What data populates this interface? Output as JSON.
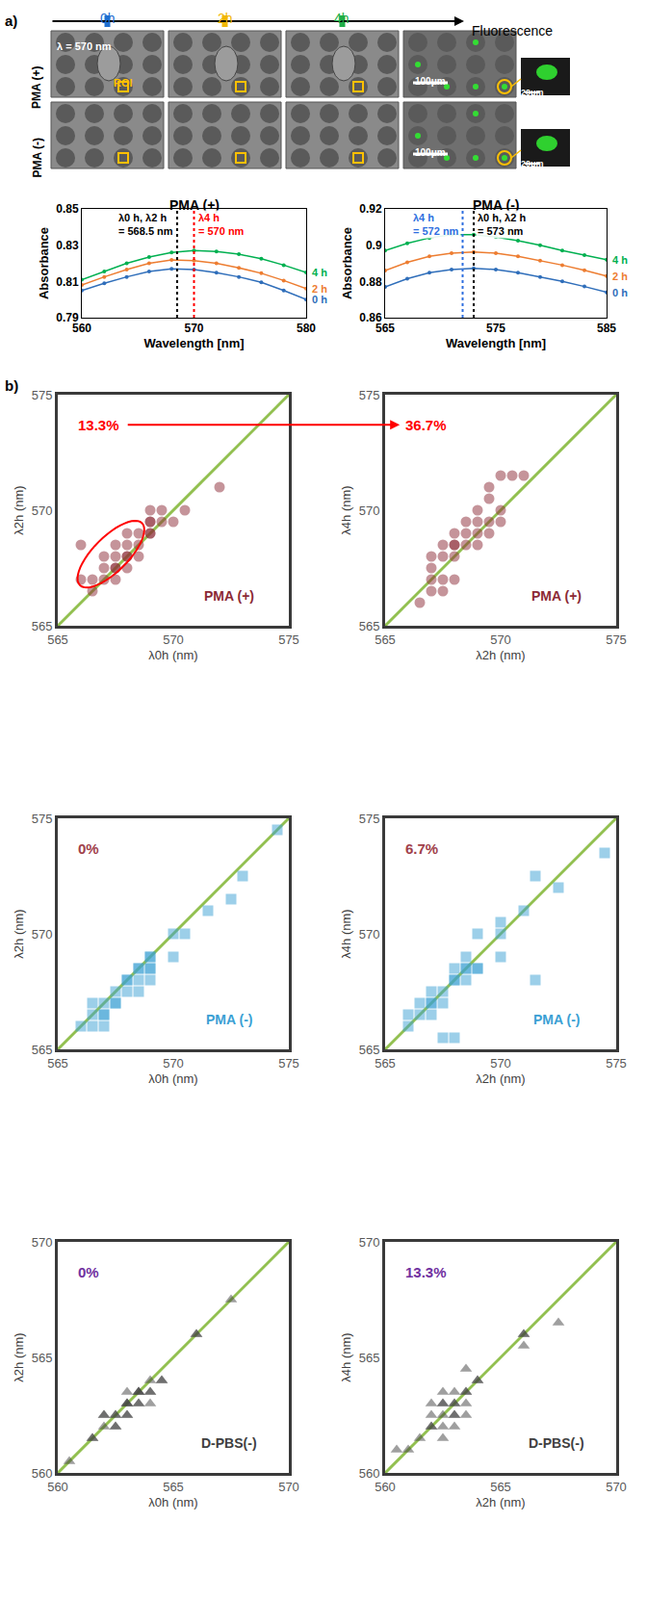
{
  "panel_labels": [
    "a)",
    "b)"
  ],
  "micrographs": {
    "timepoints": [
      {
        "label": "0h",
        "color": "#1f6fd1"
      },
      {
        "label": "2h",
        "color": "#f2b705"
      },
      {
        "label": "4h",
        "color": "#1fae48"
      }
    ],
    "fluorescence": "Fluorescence",
    "rows": [
      "PMA (+)",
      "PMA (-)"
    ],
    "wavelength": "λ = 570 nm",
    "roi": "ROI",
    "scale_bar": "100μm",
    "inset_scale_bar": "20μm"
  },
  "chart_data": [
    {
      "type": "line",
      "title": "PMA (+)",
      "x_label": "Wavelength [nm]",
      "y_label": "Absorbance",
      "marker": "circle",
      "grid": false,
      "x": [
        560,
        562,
        564,
        566,
        568,
        570,
        572,
        574,
        576,
        578,
        580
      ],
      "series": [
        {
          "name": "0 h",
          "color": "#2f6eba",
          "values": [
            0.805,
            0.809,
            0.8125,
            0.8155,
            0.817,
            0.8165,
            0.8148,
            0.8125,
            0.8095,
            0.805,
            0.8
          ]
        },
        {
          "name": "2 h",
          "color": "#ed7d31",
          "values": [
            0.808,
            0.8125,
            0.8165,
            0.82,
            0.8218,
            0.8215,
            0.82,
            0.8175,
            0.8145,
            0.8105,
            0.806
          ]
        },
        {
          "name": "4 h",
          "color": "#00b050",
          "values": [
            0.811,
            0.8155,
            0.82,
            0.8235,
            0.826,
            0.827,
            0.8265,
            0.825,
            0.8225,
            0.819,
            0.815
          ]
        }
      ],
      "xlim": [
        560,
        580
      ],
      "xticks": [
        560,
        570,
        580
      ],
      "ylim": [
        0.79,
        0.85
      ],
      "yticks": [
        0.79,
        0.81,
        0.83,
        0.85
      ],
      "annotations": [
        {
          "text": "λ0 h, λ2 h = 568.5 nm",
          "x": 568.5,
          "color": "#000000"
        },
        {
          "text": "λ4 h = 570 nm",
          "x": 570,
          "color": "#ff0000"
        }
      ]
    },
    {
      "type": "line",
      "title": "PMA (-)",
      "x_label": "Wavelength [nm]",
      "y_label": "Absorbance",
      "marker": "circle",
      "grid": false,
      "x": [
        565,
        567,
        569,
        571,
        573,
        575,
        577,
        579,
        581,
        583,
        585
      ],
      "series": [
        {
          "name": "0 h",
          "color": "#2f6eba",
          "values": [
            0.877,
            0.8815,
            0.8848,
            0.8866,
            0.8872,
            0.8866,
            0.8848,
            0.8825,
            0.88,
            0.8772,
            0.874
          ]
        },
        {
          "name": "2 h",
          "color": "#ed7d31",
          "values": [
            0.886,
            0.8905,
            0.8938,
            0.8956,
            0.8962,
            0.8956,
            0.8938,
            0.8915,
            0.889,
            0.8862,
            0.883
          ]
        },
        {
          "name": "4 h",
          "color": "#00b050",
          "values": [
            0.897,
            0.901,
            0.904,
            0.9058,
            0.9058,
            0.9045,
            0.9025,
            0.9,
            0.897,
            0.8945,
            0.892
          ]
        }
      ],
      "xlim": [
        565,
        585
      ],
      "xticks": [
        565,
        575,
        585
      ],
      "ylim": [
        0.86,
        0.92
      ],
      "yticks": [
        0.86,
        0.88,
        0.9,
        0.92
      ],
      "annotations": [
        {
          "text": "λ4 h = 572 nm",
          "x": 572,
          "color": "#2e6fe0"
        },
        {
          "text": "λ0 h, λ2 h = 573 nm",
          "x": 573,
          "color": "#000000"
        }
      ]
    },
    {
      "type": "scatter",
      "title": "PMA (+)",
      "x_label": "λ0h (nm)",
      "y_label": "λ2h (nm)",
      "color": "#8b2a35",
      "marker": "circle",
      "grid": false,
      "x": [
        566,
        566,
        566.5,
        567,
        567,
        567.5,
        567.5,
        567.5,
        568,
        568,
        568,
        568.5,
        568.5,
        569,
        569,
        569,
        569.5,
        570,
        570.5,
        572,
        567,
        567.5,
        568,
        568.5,
        569,
        569.5,
        568,
        567.5,
        569,
        566.5
      ],
      "values": [
        568.5,
        567,
        566.5,
        567.5,
        568,
        567,
        567.5,
        568.5,
        568,
        569,
        567.5,
        568,
        569,
        569.5,
        570,
        569.5,
        570,
        569.5,
        570,
        571,
        567,
        568,
        568,
        568.5,
        569,
        569.5,
        568.5,
        567.5,
        569,
        567
      ],
      "xlim": [
        565,
        575
      ],
      "xticks": [
        565,
        570,
        575
      ],
      "ylim": [
        565,
        575
      ],
      "yticks": [
        565,
        570,
        575
      ],
      "annotations": [
        {
          "text": "13.3%",
          "color": "#ff0000"
        }
      ]
    },
    {
      "type": "scatter",
      "title": "PMA (+)",
      "x_label": "λ2h (nm)",
      "y_label": "λ4h (nm)",
      "color": "#8b2a35",
      "marker": "circle",
      "grid": false,
      "x": [
        566.5,
        567,
        567,
        567,
        567.5,
        567.5,
        567.5,
        568,
        568,
        568,
        568.5,
        568.5,
        569,
        569,
        569,
        569.5,
        569.5,
        569.5,
        570,
        570,
        570.5,
        571,
        568,
        567,
        569,
        568.5,
        570,
        569.5,
        568,
        567.5
      ],
      "values": [
        566,
        567,
        566.5,
        567.5,
        568,
        568.5,
        566.5,
        568.5,
        569,
        568.5,
        569.5,
        569,
        569.5,
        570,
        569,
        569.5,
        570.5,
        571,
        571.5,
        570,
        571.5,
        571.5,
        567,
        568,
        568.5,
        568.5,
        569.5,
        569,
        568,
        567
      ],
      "xlim": [
        565,
        575
      ],
      "xticks": [
        565,
        570,
        575
      ],
      "ylim": [
        565,
        575
      ],
      "yticks": [
        565,
        570,
        575
      ],
      "annotations": [
        {
          "text": "36.7%",
          "color": "#ff0000"
        }
      ]
    },
    {
      "type": "scatter",
      "title": "PMA (-)",
      "x_label": "λ0h (nm)",
      "y_label": "λ2h (nm)",
      "color": "#3a9fd4",
      "marker": "square",
      "grid": false,
      "x": [
        566.5,
        566.5,
        567,
        567,
        567,
        567.5,
        567.5,
        566.5,
        568,
        568.5,
        568.5,
        569,
        569,
        568.5,
        568,
        569,
        570,
        570.5,
        570,
        571.5,
        572.5,
        573,
        574.5,
        568.5,
        569,
        566,
        567,
        568,
        569,
        567.5
      ],
      "values": [
        566,
        566.5,
        566,
        566.5,
        567,
        567,
        567.5,
        567,
        568,
        568.5,
        568,
        568.5,
        568,
        567.5,
        567.5,
        569,
        569,
        570,
        570,
        571,
        571.5,
        572.5,
        574.5,
        568.5,
        569,
        566,
        566.5,
        568,
        568.5,
        567
      ],
      "xlim": [
        565,
        575
      ],
      "xticks": [
        565,
        570,
        575
      ],
      "ylim": [
        565,
        575
      ],
      "yticks": [
        565,
        570,
        575
      ],
      "annotations": [
        {
          "text": "0%",
          "color": "#a0404a"
        }
      ]
    },
    {
      "type": "scatter",
      "title": "PMA (-)",
      "x_label": "λ2h (nm)",
      "y_label": "λ4h (nm)",
      "color": "#3a9fd4",
      "marker": "square",
      "grid": false,
      "x": [
        566,
        566.5,
        567,
        567,
        567.5,
        567.5,
        568,
        568,
        568,
        568.5,
        568.5,
        569,
        569,
        570,
        570,
        571,
        571.5,
        572.5,
        571.5,
        574.5,
        567,
        568.5,
        566,
        570,
        566.5,
        567.5,
        568,
        569,
        568.5,
        567
      ],
      "values": [
        566,
        567,
        567,
        566.5,
        567.5,
        565.5,
        565.5,
        568,
        568.5,
        568.5,
        569,
        570,
        568.5,
        570,
        569,
        571,
        572.5,
        572,
        568,
        573.5,
        567.5,
        568,
        566.5,
        570.5,
        566.5,
        567,
        568,
        568.5,
        568.5,
        567
      ],
      "xlim": [
        565,
        575
      ],
      "xticks": [
        565,
        570,
        575
      ],
      "ylim": [
        565,
        575
      ],
      "yticks": [
        565,
        570,
        575
      ],
      "annotations": [
        {
          "text": "6.7%",
          "color": "#a0404a"
        }
      ]
    },
    {
      "type": "scatter",
      "title": "D-PBS(-)",
      "x_label": "λ0h (nm)",
      "y_label": "λ2h (nm)",
      "color": "#404040",
      "marker": "triangle-up",
      "grid": false,
      "x": [
        560.5,
        561.5,
        562,
        562.5,
        562.5,
        563,
        563,
        563.5,
        563.5,
        563,
        564,
        564,
        564,
        564.5,
        566,
        567.5,
        562,
        563.5,
        562,
        562.5,
        563,
        563.5,
        564,
        561.5,
        562.5,
        563,
        563.5,
        564.5,
        566,
        563
      ],
      "values": [
        560.5,
        561.5,
        562.5,
        562,
        562.5,
        562.5,
        563,
        563.5,
        563,
        563.5,
        563,
        563.5,
        564,
        564,
        566,
        567.5,
        562,
        563.5,
        562.5,
        562.5,
        563,
        563,
        563.5,
        561.5,
        562,
        563,
        563.5,
        564,
        566,
        562.5
      ],
      "xlim": [
        560,
        570
      ],
      "xticks": [
        560,
        565,
        570
      ],
      "ylim": [
        560,
        570
      ],
      "yticks": [
        560,
        565,
        570
      ],
      "annotations": [
        {
          "text": "0%",
          "color": "#7030a0"
        }
      ]
    },
    {
      "type": "scatter",
      "title": "D-PBS(-)",
      "x_label": "λ2h (nm)",
      "y_label": "λ4h (nm)",
      "color": "#404040",
      "marker": "triangle-up",
      "grid": false,
      "x": [
        560.5,
        561.5,
        562,
        562,
        562.5,
        562.5,
        562.5,
        563,
        563,
        563,
        563.5,
        563.5,
        563.5,
        563,
        564,
        566,
        566,
        567.5,
        562.5,
        562,
        561,
        562.5,
        563,
        563.5,
        564,
        562,
        563,
        562.5,
        563.5,
        566
      ],
      "values": [
        561,
        561.5,
        562,
        562.5,
        563,
        562.5,
        562,
        563,
        562.5,
        563.5,
        563.5,
        564.5,
        562.5,
        562,
        564,
        566,
        565.5,
        566.5,
        561.5,
        563,
        561,
        563.5,
        563,
        563,
        564,
        562,
        562.5,
        563,
        563.5,
        566
      ],
      "xlim": [
        560,
        570
      ],
      "xticks": [
        560,
        565,
        570
      ],
      "ylim": [
        560,
        570
      ],
      "yticks": [
        560,
        565,
        570
      ],
      "annotations": [
        {
          "text": "13.3%",
          "color": "#7030a0"
        }
      ]
    }
  ]
}
